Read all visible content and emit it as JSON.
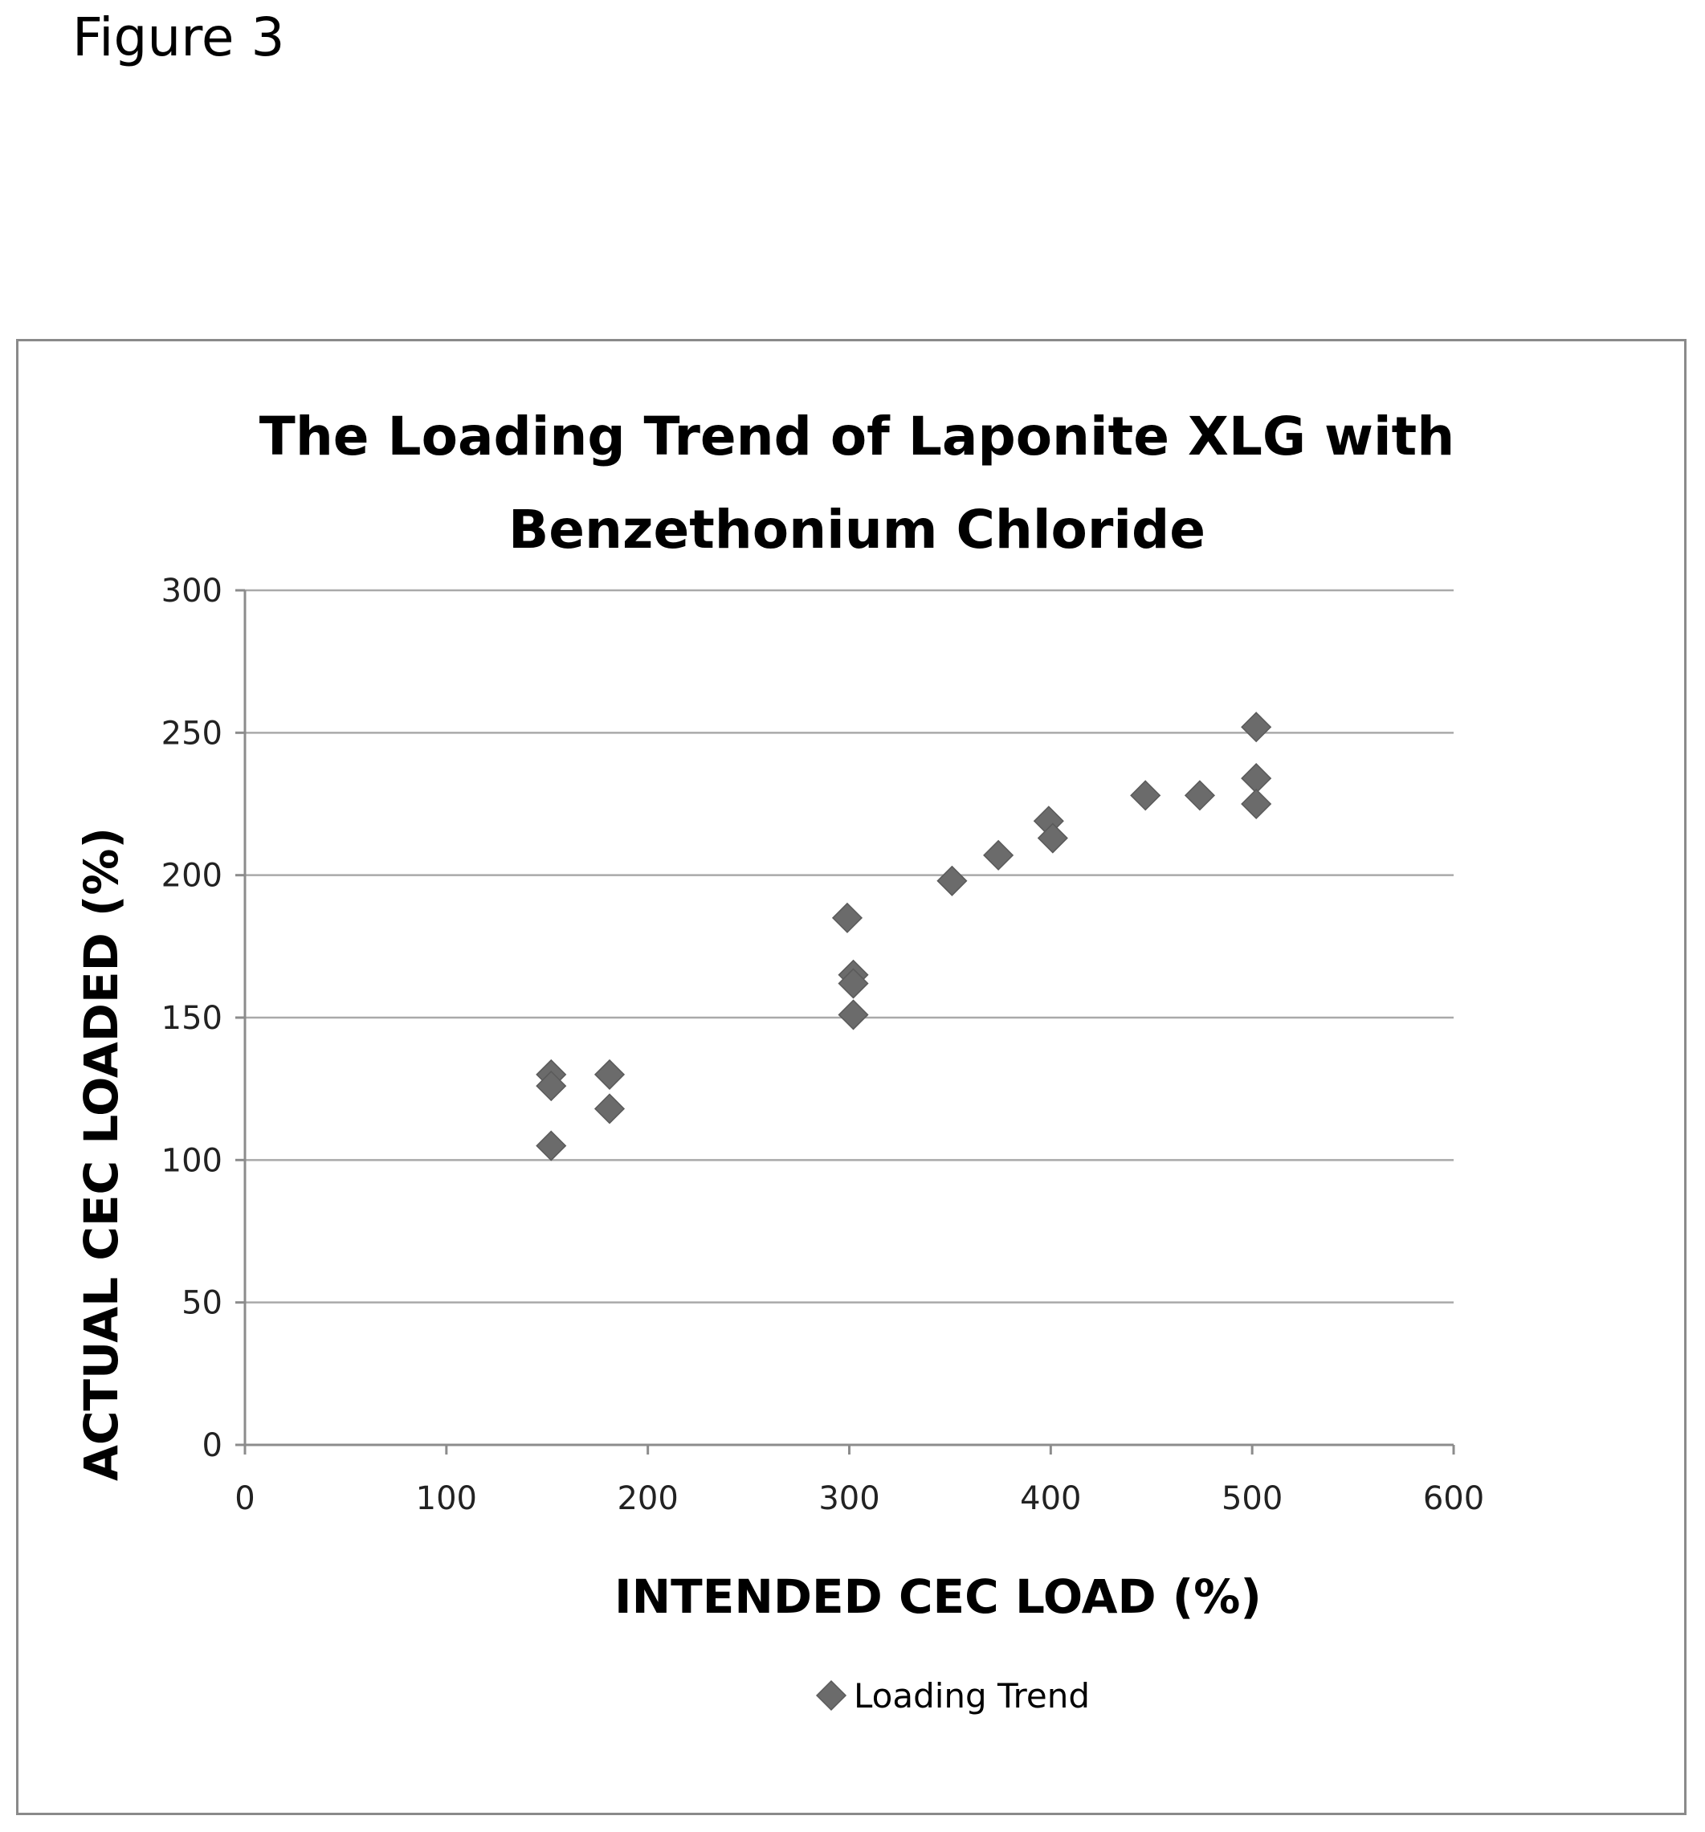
{
  "figure_label": "Figure 3",
  "chart_data": {
    "type": "scatter",
    "title_lines": [
      "The Loading Trend of Laponite XLG with",
      "Benzethonium Chloride"
    ],
    "xlabel": "INTENDED CEC LOAD (%)",
    "ylabel": "ACTUAL CEC LOADED (%)",
    "xlim": [
      0,
      600
    ],
    "ylim": [
      0,
      300
    ],
    "x_ticks": [
      0,
      100,
      200,
      300,
      400,
      500,
      600
    ],
    "y_ticks": [
      0,
      50,
      100,
      150,
      200,
      250,
      300
    ],
    "grid": "horizontal",
    "legend": {
      "position": "bottom",
      "entries": [
        "Loading Trend"
      ]
    },
    "series": [
      {
        "name": "Loading Trend",
        "color": "#6b6b6b",
        "marker": "diamond",
        "points": [
          [
            152,
            130
          ],
          [
            152,
            126
          ],
          [
            152,
            105
          ],
          [
            181,
            130
          ],
          [
            181,
            118
          ],
          [
            299,
            185
          ],
          [
            302,
            165
          ],
          [
            302,
            162
          ],
          [
            302,
            151
          ],
          [
            351,
            198
          ],
          [
            374,
            207
          ],
          [
            399,
            219
          ],
          [
            401,
            213
          ],
          [
            447,
            228
          ],
          [
            474,
            228
          ],
          [
            502,
            252
          ],
          [
            502,
            234
          ],
          [
            502,
            225
          ]
        ]
      }
    ]
  }
}
